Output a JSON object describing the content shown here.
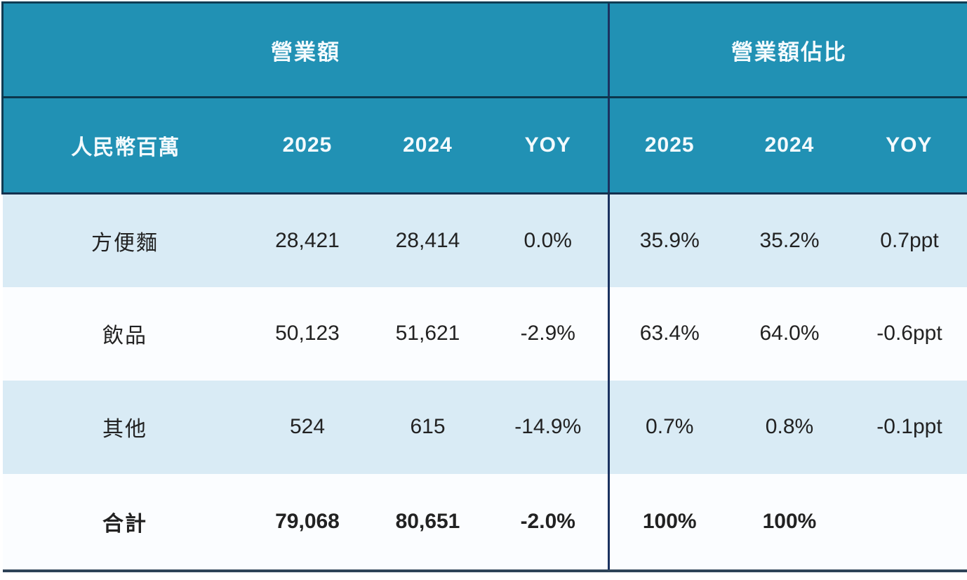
{
  "colors": {
    "header_teal": "#2191b4",
    "header_text": "#f3fafd",
    "row_light_blue": "#d9ebf5",
    "row_white": "#fbfdff",
    "divider_navy": "#1b3260",
    "header_border_dark": "#0f3c53",
    "bottom_border": "#2e4358",
    "body_text": "#222222"
  },
  "table": {
    "group_headers": {
      "revenue": "營業額",
      "revenue_share": "營業額佔比"
    },
    "columns": {
      "unit": "人民幣百萬",
      "rev_2025": "2025",
      "rev_2024": "2024",
      "rev_yoy": "YOY",
      "share_2025": "2025",
      "share_2024": "2024",
      "share_yoy": "YOY"
    },
    "rows": [
      {
        "label": "方便麵",
        "rev_2025": "28,421",
        "rev_2024": "28,414",
        "rev_yoy": "0.0%",
        "share_2025": "35.9%",
        "share_2024": "35.2%",
        "share_yoy": "0.7ppt"
      },
      {
        "label": "飲品",
        "rev_2025": "50,123",
        "rev_2024": "51,621",
        "rev_yoy": "-2.9%",
        "share_2025": "63.4%",
        "share_2024": "64.0%",
        "share_yoy": "-0.6ppt"
      },
      {
        "label": "其他",
        "rev_2025": "524",
        "rev_2024": "615",
        "rev_yoy": "-14.9%",
        "share_2025": "0.7%",
        "share_2024": "0.8%",
        "share_yoy": "-0.1ppt"
      },
      {
        "label": "合計",
        "rev_2025": "79,068",
        "rev_2024": "80,651",
        "rev_yoy": "-2.0%",
        "share_2025": "100%",
        "share_2024": "100%",
        "share_yoy": ""
      }
    ]
  }
}
